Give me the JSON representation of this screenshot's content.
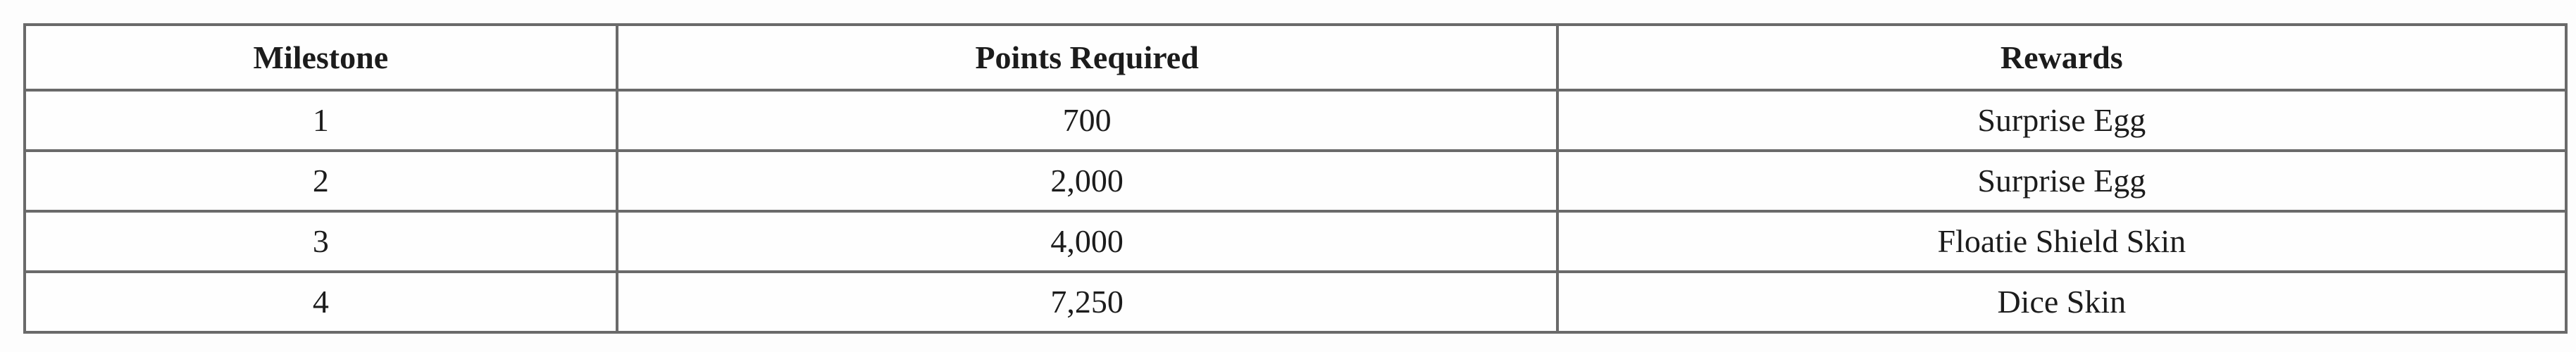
{
  "table": {
    "columns": [
      {
        "label": "Milestone"
      },
      {
        "label": "Points Required"
      },
      {
        "label": "Rewards"
      }
    ],
    "rows": [
      [
        "1",
        "700",
        "Surprise Egg"
      ],
      [
        "2",
        "2,000",
        "Surprise Egg"
      ],
      [
        "3",
        "4,000",
        "Floatie Shield Skin"
      ],
      [
        "4",
        "7,250",
        "Dice Skin"
      ]
    ],
    "colors": {
      "border": "#6a6a6a",
      "text": "#1c1c1c",
      "cell_background": "#fefefe",
      "page_background": "#fdfdfd"
    }
  },
  "chart_data": {
    "type": "table",
    "title": "",
    "columns": [
      "Milestone",
      "Points Required",
      "Rewards"
    ],
    "rows": [
      [
        "1",
        "700",
        "Surprise Egg"
      ],
      [
        "2",
        "2,000",
        "Surprise Egg"
      ],
      [
        "3",
        "4,000",
        "Floatie Shield Skin"
      ],
      [
        "4",
        "7,250",
        "Dice Skin"
      ]
    ]
  }
}
